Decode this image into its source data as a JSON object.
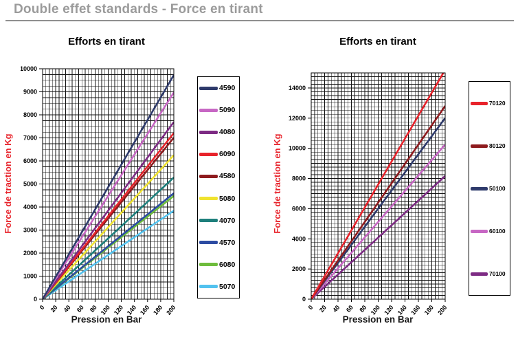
{
  "page": {
    "title": "Double effet standards - Force en tirant"
  },
  "chart_data": [
    {
      "type": "line",
      "title": "Efforts en tirant",
      "xlabel": "Pression en Bar",
      "ylabel": "Force de traction en Kg",
      "xlim": [
        0,
        200
      ],
      "ylim": [
        0,
        10000
      ],
      "xticks": [
        0,
        20,
        40,
        60,
        80,
        100,
        120,
        140,
        160,
        180,
        200
      ],
      "yticks": [
        0,
        1000,
        2000,
        3000,
        4000,
        5000,
        6000,
        7000,
        8000,
        9000,
        10000
      ],
      "x_minor_step": 5,
      "y_minor_step": 250,
      "grid": true,
      "legend_position": "right",
      "x": [
        0,
        200
      ],
      "series": [
        {
          "name": "4590",
          "color": "#2e3a6b",
          "values": [
            0,
            9730
          ]
        },
        {
          "name": "5090",
          "color": "#c767c4",
          "values": [
            0,
            8970
          ]
        },
        {
          "name": "4080",
          "color": "#7d2b84",
          "values": [
            0,
            7690
          ]
        },
        {
          "name": "6090",
          "color": "#e8232b",
          "values": [
            0,
            7210
          ]
        },
        {
          "name": "4580",
          "color": "#8e1b1e",
          "values": [
            0,
            7010
          ]
        },
        {
          "name": "5080",
          "color": "#f0e32f",
          "values": [
            0,
            6250
          ]
        },
        {
          "name": "4070",
          "color": "#1e7f7c",
          "values": [
            0,
            5280
          ]
        },
        {
          "name": "4570",
          "color": "#2c4ba2",
          "values": [
            0,
            4600
          ]
        },
        {
          "name": "6080",
          "color": "#6ebc3c",
          "values": [
            0,
            4480
          ]
        },
        {
          "name": "5070",
          "color": "#52c2ef",
          "values": [
            0,
            3840
          ]
        }
      ]
    },
    {
      "type": "line",
      "title": "Efforts en tirant",
      "xlabel": "Pression en Bar",
      "ylabel": "Force de traction en Kg",
      "xlim": [
        0,
        200
      ],
      "ylim": [
        0,
        15000
      ],
      "xticks": [
        0,
        20,
        40,
        60,
        80,
        100,
        120,
        140,
        160,
        180,
        200
      ],
      "yticks": [
        0,
        2000,
        4000,
        6000,
        8000,
        10000,
        12000,
        14000
      ],
      "x_minor_step": 5,
      "y_minor_step": 250,
      "grid": true,
      "legend_position": "right",
      "x": [
        0,
        200
      ],
      "series": [
        {
          "name": "70120",
          "color": "#e8232b",
          "values": [
            0,
            15210
          ]
        },
        {
          "name": "80120",
          "color": "#8e1b1e",
          "values": [
            0,
            12810
          ]
        },
        {
          "name": "50100",
          "color": "#2e3a6b",
          "values": [
            0,
            12010
          ]
        },
        {
          "name": "60100",
          "color": "#c767c4",
          "values": [
            0,
            10250
          ]
        },
        {
          "name": "70100",
          "color": "#7d2b84",
          "values": [
            0,
            8170
          ]
        }
      ]
    }
  ]
}
